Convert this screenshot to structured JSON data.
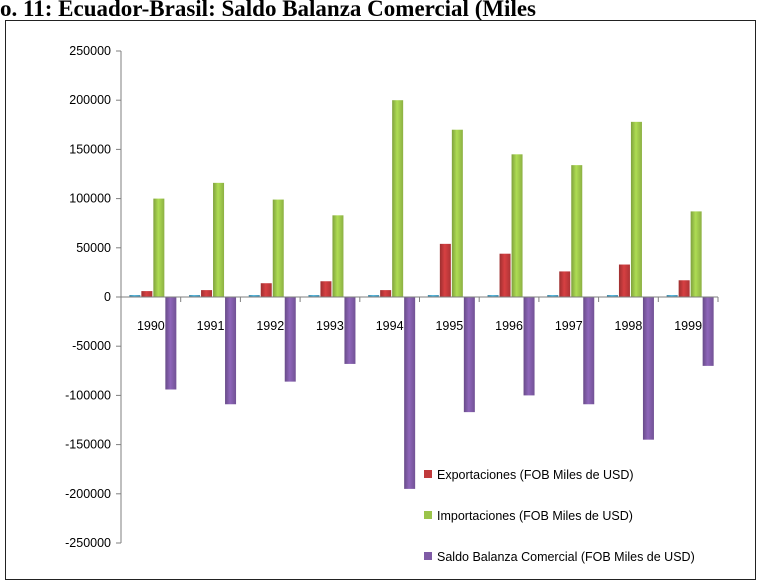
{
  "page": {
    "title": "o. 11: Ecuador-Brasil: Saldo Balanza Comercial (Miles"
  },
  "chart_data": {
    "type": "bar",
    "title": "",
    "xlabel": "",
    "ylabel": "",
    "categories": [
      "1990",
      "1991",
      "1992",
      "1993",
      "1994",
      "1995",
      "1996",
      "1997",
      "1998",
      "1999"
    ],
    "ylim": [
      -250000,
      250000
    ],
    "ytick_step": 50000,
    "grid": false,
    "legend_position": "bottom-right",
    "series": [
      {
        "name": "",
        "color": "#4aa3c7",
        "values": [
          2000,
          2000,
          2000,
          2000,
          2000,
          2000,
          2000,
          2000,
          2000,
          2000
        ]
      },
      {
        "name": "Exportaciones  (FOB Miles de USD)",
        "color": "#c0393b",
        "values": [
          6000,
          7000,
          14000,
          16000,
          7000,
          54000,
          44000,
          26000,
          33000,
          17000
        ]
      },
      {
        "name": "Importaciones   (FOB Miles de USD)",
        "color": "#9bc44a",
        "values": [
          100000,
          116000,
          99000,
          83000,
          200000,
          170000,
          145000,
          134000,
          178000,
          87000
        ]
      },
      {
        "name": "Saldo Balanza Comercial  (FOB Miles de USD)",
        "color": "#7f5ba6",
        "values": [
          -94000,
          -109000,
          -86000,
          -68000,
          -195000,
          -117000,
          -100000,
          -109000,
          -145000,
          -70000
        ]
      }
    ]
  }
}
